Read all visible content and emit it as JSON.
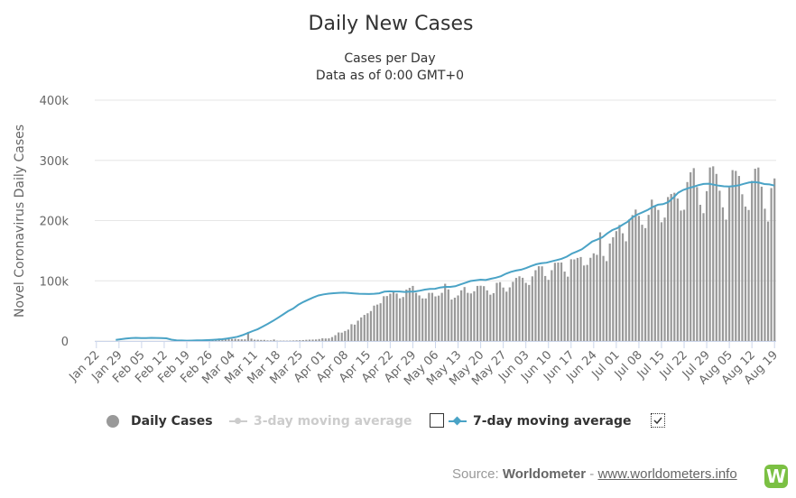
{
  "chart_data": {
    "type": "bar",
    "title": "Daily New Cases",
    "subtitle": "Cases per Day",
    "subtitle2": "Data as of 0:00 GMT+0",
    "ylabel": "Novel Coronavirus Daily Cases",
    "ylim": [
      0,
      400000
    ],
    "yticks": [
      0,
      100000,
      200000,
      300000,
      400000
    ],
    "ytick_labels": [
      "0",
      "100k",
      "200k",
      "300k",
      "400k"
    ],
    "x_tick_labels": [
      "Jan 22",
      "Jan 29",
      "Feb 05",
      "Feb 12",
      "Feb 19",
      "Feb 26",
      "Mar 04",
      "Mar 11",
      "Mar 18",
      "Mar 25",
      "Apr 01",
      "Apr 08",
      "Apr 15",
      "Apr 22",
      "Apr 29",
      "May 06",
      "May 13",
      "May 20",
      "May 27",
      "Jun 03",
      "Jun 10",
      "Jun 17",
      "Jun 24",
      "Jul 01",
      "Jul 08",
      "Jul 15",
      "Jul 22",
      "Jul 29",
      "Aug 05",
      "Aug 12",
      "Aug 19"
    ],
    "grid": true,
    "bar_color": "#999999",
    "ma_color": "#4aa3c6",
    "series": [
      {
        "name": "Daily Cases",
        "start_date": "Jan 22",
        "values": [
          600,
          400,
          800,
          700,
          1800,
          1400,
          2300,
          2100,
          2800,
          3000,
          4100,
          3900,
          3700,
          3200,
          3500,
          3700,
          3100,
          2800,
          2800,
          15100,
          4000,
          2200,
          2100,
          1800,
          1900,
          1100,
          1100,
          2500,
          500,
          600,
          600,
          500,
          700,
          900,
          1100,
          1300,
          1600,
          2000,
          2300,
          2400,
          2600,
          3300,
          4500,
          4200,
          4400,
          6500,
          9700,
          14200,
          13900,
          16700,
          19000,
          27900,
          27200,
          33800,
          39200,
          43400,
          46100,
          49800,
          58800,
          60500,
          62700,
          74400,
          74700,
          78600,
          81500,
          78900,
          70800,
          73100,
          85400,
          88300,
          91500,
          80000,
          75700,
          70800,
          70700,
          80000,
          80000,
          74100,
          75400,
          80000,
          95100,
          85700,
          68900,
          72000,
          75700,
          84200,
          89600,
          80000,
          79000,
          82700,
          91500,
          91800,
          91100,
          84100,
          76900,
          79500,
          96600,
          97800,
          88800,
          82000,
          89100,
          98300,
          104800,
          107500,
          105000,
          96600,
          93100,
          107400,
          117600,
          124200,
          124000,
          108000,
          101600,
          117600,
          129900,
          130300,
          130400,
          115300,
          106900,
          135800,
          135500,
          138000,
          139500,
          125400,
          126400,
          138200,
          145600,
          143100,
          180500,
          141300,
          132700,
          161900,
          172300,
          182500,
          192800,
          178900,
          165600,
          201800,
          209100,
          218300,
          207800,
          193100,
          187500,
          209500,
          234800,
          222900,
          217700,
          197200,
          205000,
          239100,
          244100,
          246200,
          236600,
          216600,
          218000,
          264000,
          280200,
          287100,
          255600,
          226200,
          212300,
          248900,
          288200,
          290100,
          277500,
          249600,
          222000,
          201600,
          255200,
          283800,
          282500,
          274100,
          243700,
          223300,
          217600,
          266000,
          286100,
          288100,
          256300,
          219700,
          198400,
          254000,
          270000
        ],
        "ma7": [
          2000,
          3000,
          4000,
          5000,
          5200,
          5000,
          5000,
          5200,
          5100,
          5000,
          4500,
          2200,
          1200,
          900,
          600,
          800,
          1000,
          1200,
          1500,
          2000,
          2400,
          3000,
          4200,
          5500,
          7000,
          9800,
          13000,
          16500,
          19700,
          24000,
          28500,
          33200,
          38500,
          44000,
          49600,
          54000,
          60000,
          64700,
          68600,
          72400,
          75700,
          77500,
          78700,
          79400,
          80000,
          80300,
          79800,
          79100,
          78500,
          78300,
          78100,
          78500,
          79300,
          81900,
          82600,
          82300,
          82200,
          81500,
          82000,
          82200,
          83600,
          85400,
          86600,
          86700,
          88900,
          89900,
          89900,
          91000,
          94000,
          96800,
          99600,
          100800,
          101800,
          101300,
          103400,
          105200,
          107600,
          111800,
          114900,
          117000,
          118500,
          121200,
          124600,
          127500,
          129100,
          130100,
          132300,
          134400,
          136700,
          140100,
          145100,
          148600,
          152300,
          158600,
          165100,
          168400,
          172200,
          178700,
          184300,
          187600,
          193100,
          198100,
          205500,
          210300,
          213900,
          217800,
          222800,
          226300,
          227300,
          230500,
          237700,
          246300,
          250900,
          253800,
          256200,
          258900,
          260800,
          261300,
          259600,
          258000,
          256900,
          256500,
          257400,
          258800,
          261100,
          263200,
          264000,
          262900,
          260700,
          260100,
          258100
        ]
      }
    ],
    "legend": {
      "daily": "Daily Cases",
      "three_day": "3-day moving average",
      "seven_day": "7-day moving average"
    }
  },
  "source": {
    "prefix": "Source: ",
    "name": "Worldometer",
    "dash": " - ",
    "link": "www.worldometers.info",
    "logo": "W"
  }
}
